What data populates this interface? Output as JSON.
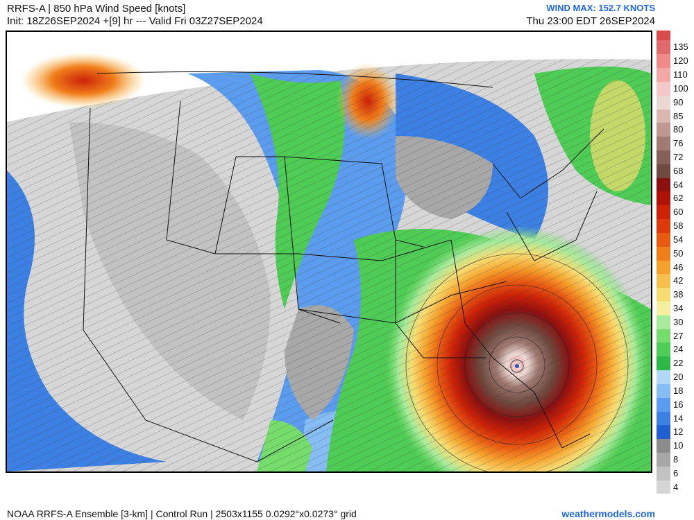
{
  "header": {
    "title_line1": "RRFS-A | 850 hPa Wind Speed [knots]",
    "title_line2": "Init: 18Z26SEP2024 +[9] hr --- Valid Fri 03Z27SEP2024",
    "wind_max": "WIND MAX: 152.7 KNOTS",
    "local_time": "Thu 23:00 EDT 26SEP2024"
  },
  "footer": {
    "model_info": "NOAA RRFS-A Ensemble [3-km] | Control Run | 2503x1155 0.0292°x0.0273° grid",
    "site": "weathermodels.com"
  },
  "colorbar": {
    "levels": [
      {
        "value": "4",
        "color": "#d6d6d6"
      },
      {
        "value": "6",
        "color": "#c2c2c2"
      },
      {
        "value": "8",
        "color": "#a8a8a8"
      },
      {
        "value": "10",
        "color": "#8c8c8c"
      },
      {
        "value": "12",
        "color": "#1f5fd0"
      },
      {
        "value": "14",
        "color": "#3d80e3"
      },
      {
        "value": "16",
        "color": "#5c9cee"
      },
      {
        "value": "18",
        "color": "#86bdf4"
      },
      {
        "value": "20",
        "color": "#b0d9f7"
      },
      {
        "value": "22",
        "color": "#2fb84a"
      },
      {
        "value": "24",
        "color": "#4fcc55"
      },
      {
        "value": "27",
        "color": "#76dc6c"
      },
      {
        "value": "30",
        "color": "#a8ea9c"
      },
      {
        "value": "34",
        "color": "#f4f0a0"
      },
      {
        "value": "38",
        "color": "#f7dc72"
      },
      {
        "value": "42",
        "color": "#f6be4a"
      },
      {
        "value": "46",
        "color": "#f5a12d"
      },
      {
        "value": "50",
        "color": "#f07e1a"
      },
      {
        "value": "54",
        "color": "#e85a12"
      },
      {
        "value": "58",
        "color": "#dc3a0c"
      },
      {
        "value": "60",
        "color": "#cc2208"
      },
      {
        "value": "62",
        "color": "#b01206"
      },
      {
        "value": "64",
        "color": "#8c1010"
      },
      {
        "value": "68",
        "color": "#6e4a40"
      },
      {
        "value": "72",
        "color": "#85605a"
      },
      {
        "value": "76",
        "color": "#a07a72"
      },
      {
        "value": "80",
        "color": "#bf9890"
      },
      {
        "value": "85",
        "color": "#d8b8b0"
      },
      {
        "value": "90",
        "color": "#ecd8d2"
      },
      {
        "value": "100",
        "color": "#f7c8c8"
      },
      {
        "value": "110",
        "color": "#f4a7a7"
      },
      {
        "value": "120",
        "color": "#ee8a8a"
      },
      {
        "value": "135",
        "color": "#e06a6a"
      }
    ],
    "top_cap_color": "#d84c4c"
  },
  "map": {
    "field": "850 hPa Wind Speed",
    "feature": "hurricane vortex over the northeastern Gulf of Mexico / Florida Big Bend",
    "max_wind_knots": 152.7
  }
}
